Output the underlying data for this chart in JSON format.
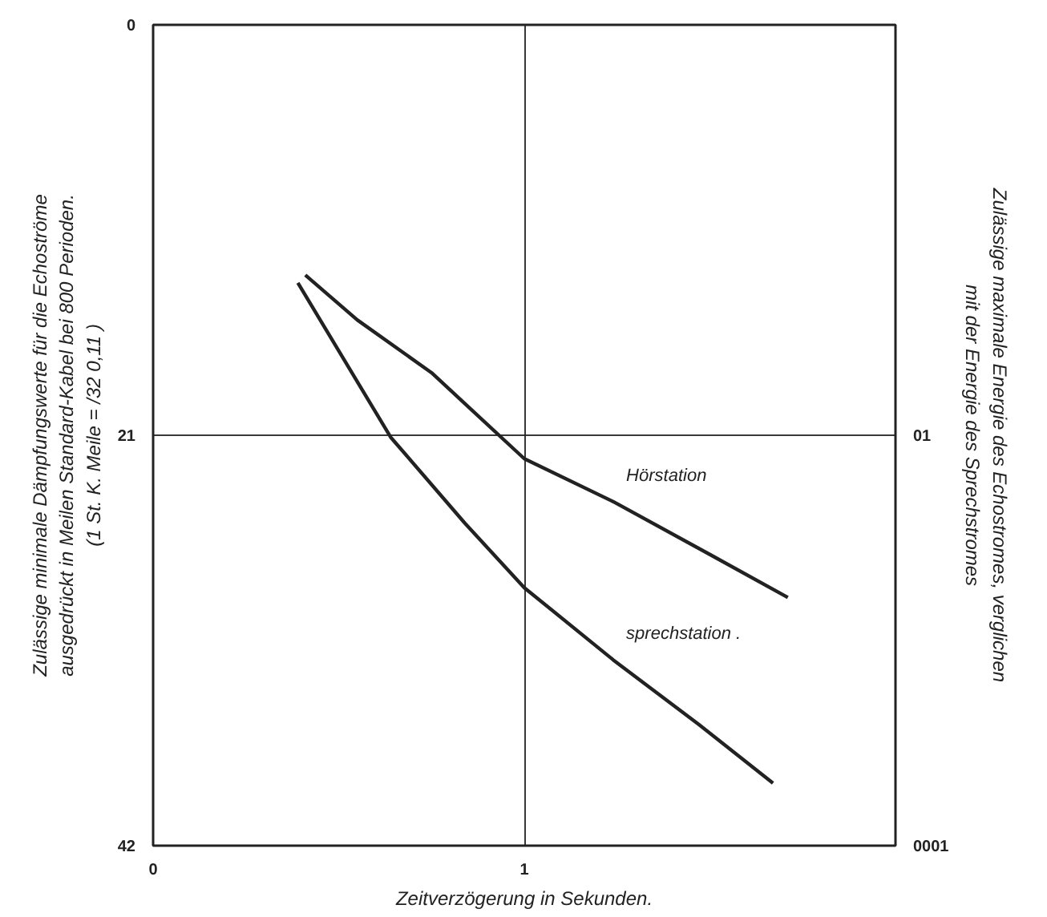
{
  "chart_data": {
    "type": "line",
    "xlabel": "Zeitverzögerung in Sekunden.",
    "ylabel": "Zulässige minimale Dämpfungswerte für die Echoströme\nausgedrückt in Meilen Standard-Kabel bei 800 Perioden.\n(1 St. K. Meile = /32 0,11 )",
    "y2label": "Zulässige maximale Energie des Echostromes, verglichen\nmit der Energie des Sprechstromes",
    "xlim": [
      0,
      2
    ],
    "xticks": [
      0,
      1
    ],
    "ylim": [
      42,
      0
    ],
    "yticks": [
      0,
      21,
      42
    ],
    "annotations": [
      "01",
      "0001"
    ],
    "grid": true,
    "marker": "none",
    "line_style": "solid",
    "series": [
      {
        "name": "Hörstation",
        "color": "#222222",
        "x": [
          0.41,
          0.55,
          0.75,
          1.0,
          1.24,
          1.5,
          1.71
        ],
        "values": [
          12.8,
          15.1,
          17.8,
          22.2,
          24.4,
          27.1,
          29.3
        ]
      },
      {
        "name": "sprechstation .",
        "color": "#222222",
        "x": [
          0.39,
          0.64,
          0.84,
          1.0,
          1.24,
          1.47,
          1.67
        ],
        "values": [
          13.2,
          21.1,
          25.5,
          28.8,
          32.5,
          35.8,
          38.8
        ]
      }
    ]
  }
}
